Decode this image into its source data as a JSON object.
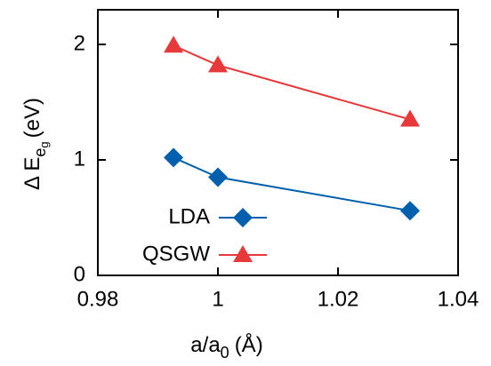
{
  "chart_data": {
    "type": "line",
    "x_label": [
      "a/a",
      "0",
      "(Å)"
    ],
    "y_label": [
      "Δ E",
      "e",
      "g",
      "(eV)"
    ],
    "x": [
      0.9926,
      1.0,
      1.032
    ],
    "series": [
      {
        "name": "LDA",
        "color": "#0060ad",
        "marker": "diamond",
        "values": [
          1.02,
          0.85,
          0.56
        ]
      },
      {
        "name": "QSGW",
        "color": "#e8393a",
        "marker": "triangle",
        "values": [
          1.99,
          1.82,
          1.35
        ]
      }
    ],
    "xlim": [
      0.98,
      1.04
    ],
    "xticks": [
      0.98,
      1,
      1.02,
      1.04
    ],
    "ylim": [
      0,
      2.3
    ],
    "yticks": [
      0,
      1,
      2
    ],
    "grid": false,
    "legend": "lower left"
  }
}
